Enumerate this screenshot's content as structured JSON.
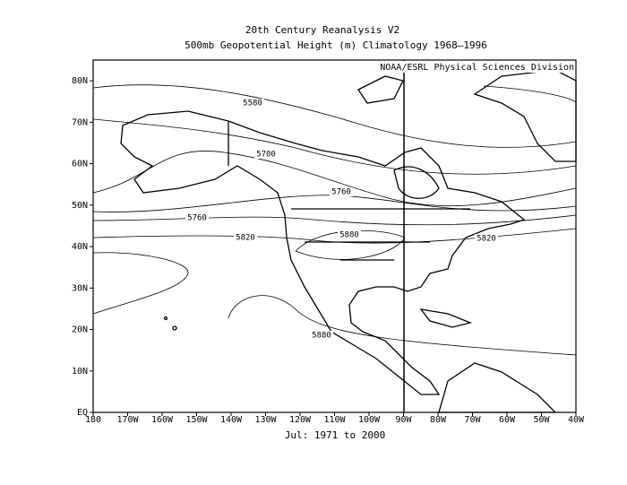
{
  "header": {
    "title": "20th Century Reanalysis V2",
    "subtitle": "500mb Geopotential Height (m) Climatology 1968–1996",
    "credit": "NOAA/ESRL Physical Sciences Division"
  },
  "axes": {
    "x_labels": [
      "180",
      "170W",
      "160W",
      "150W",
      "140W",
      "130W",
      "120W",
      "110W",
      "100W",
      "90W",
      "80W",
      "70W",
      "60W",
      "50W",
      "40W"
    ],
    "y_labels": [
      "EQ",
      "10N",
      "20N",
      "30N",
      "40N",
      "50N",
      "60N",
      "70N",
      "80N"
    ]
  },
  "contour_labels": [
    "5580",
    "5700",
    "5760",
    "5760",
    "5820",
    "5880",
    "5820",
    "5880"
  ],
  "footer": "Jul: 1971 to 2000"
}
